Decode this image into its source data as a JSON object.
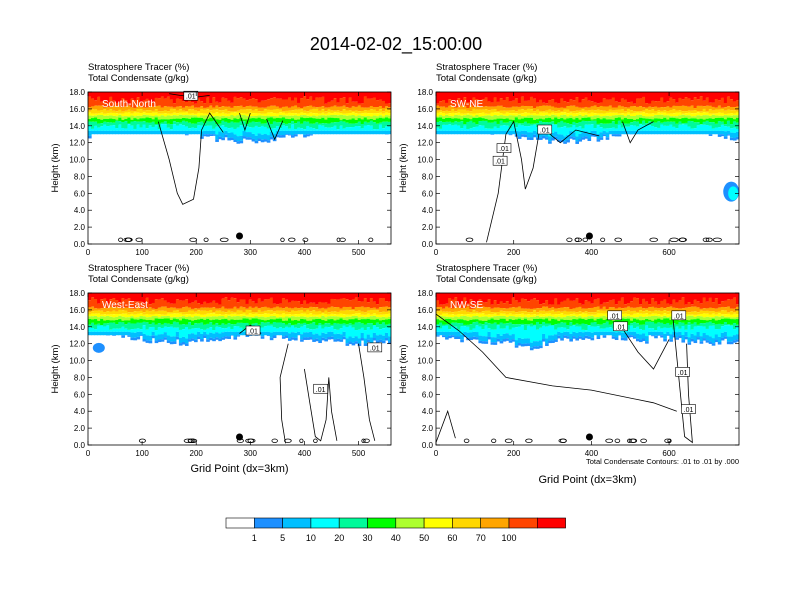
{
  "title": "2014-02-02_15:00:00",
  "subtitle_line1": "Stratosphere Tracer   (%)",
  "subtitle_line2": "Total Condensate   (g/kg)",
  "chart_data": [
    {
      "type": "heatmap",
      "panel_label": "South-North",
      "xlim": [
        0,
        560
      ],
      "ylim": [
        0,
        18
      ],
      "xticks": [
        0,
        100,
        200,
        300,
        400,
        500
      ],
      "yticks": [
        "0.0",
        "2.0",
        "4.0",
        "6.0",
        "8.0",
        "10.0",
        "12.0",
        "14.0",
        "16.0",
        "18.0"
      ],
      "ylabel": "Height (km)",
      "marker_x": 280,
      "contour_labels": [
        {
          "text": ".01",
          "x": 190,
          "y": 17.5
        }
      ]
    },
    {
      "type": "heatmap",
      "panel_label": "SW-NE",
      "xlim": [
        0,
        780
      ],
      "ylim": [
        0,
        18
      ],
      "xticks": [
        0,
        200,
        400,
        600
      ],
      "yticks": [
        "0.0",
        "2.0",
        "4.0",
        "6.0",
        "8.0",
        "10.0",
        "12.0",
        "14.0",
        "16.0",
        "18.0"
      ],
      "ylabel": "Height (km)",
      "marker_x": 395,
      "contour_labels": [
        {
          "text": ".01",
          "x": 175,
          "y": 11.3
        },
        {
          "text": ".01",
          "x": 165,
          "y": 9.8
        },
        {
          "text": ".01",
          "x": 280,
          "y": 13.5
        }
      ]
    },
    {
      "type": "heatmap",
      "panel_label": "West-East",
      "xlim": [
        0,
        560
      ],
      "ylim": [
        0,
        18
      ],
      "xticks": [
        0,
        100,
        200,
        300,
        400,
        500
      ],
      "yticks": [
        "0.0",
        "2.0",
        "4.0",
        "6.0",
        "8.0",
        "10.0",
        "12.0",
        "14.0",
        "16.0",
        "18.0"
      ],
      "ylabel": "Height (km)",
      "xlabel": "Grid Point (dx=3km)",
      "marker_x": 280,
      "contour_labels": [
        {
          "text": ".01",
          "x": 305,
          "y": 13.5
        },
        {
          "text": ".01",
          "x": 530,
          "y": 11.5
        },
        {
          "text": ".01",
          "x": 430,
          "y": 6.6
        }
      ]
    },
    {
      "type": "heatmap",
      "panel_label": "NW-SE",
      "xlim": [
        0,
        780
      ],
      "ylim": [
        0,
        18
      ],
      "xticks": [
        0,
        200,
        400,
        600
      ],
      "yticks": [
        "0.0",
        "2.0",
        "4.0",
        "6.0",
        "8.0",
        "10.0",
        "12.0",
        "14.0",
        "16.0",
        "18.0"
      ],
      "ylabel": "Height (km)",
      "xlabel": "Grid Point (dx=3km)",
      "marker_x": 395,
      "contour_labels": [
        {
          "text": ".01",
          "x": 460,
          "y": 15.3
        },
        {
          "text": ".01",
          "x": 625,
          "y": 15.3
        },
        {
          "text": ".01",
          "x": 475,
          "y": 14.0
        },
        {
          "text": ".01",
          "x": 635,
          "y": 8.6
        },
        {
          "text": ".01",
          "x": 650,
          "y": 4.2
        }
      ]
    }
  ],
  "contour_note": "Total Condensate Contours: .01 to .01 by .000",
  "colorbar": {
    "colors": [
      "#ffffff",
      "#1e90ff",
      "#00bfff",
      "#00ffff",
      "#00fa9a",
      "#00ff00",
      "#adff2f",
      "#ffff00",
      "#ffd700",
      "#ffa500",
      "#ff4500",
      "#ff0000"
    ],
    "labels": [
      "1",
      "5",
      "10",
      "20",
      "30",
      "40",
      "50",
      "60",
      "70",
      "100"
    ]
  }
}
